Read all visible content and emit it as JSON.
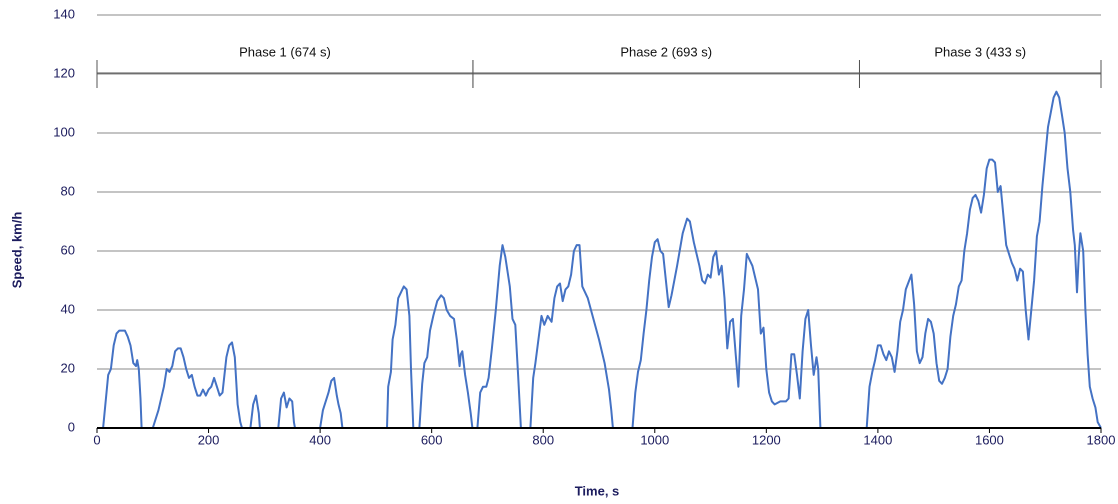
{
  "chart_data": {
    "type": "line",
    "x_label": "Time, s",
    "y_label": "Speed, km/h",
    "xlim": [
      0,
      1800
    ],
    "xticks": [
      0,
      200,
      400,
      600,
      800,
      1000,
      1200,
      1400,
      1600,
      1800
    ],
    "ylim": [
      0,
      140
    ],
    "yticks": [
      0,
      20,
      40,
      60,
      80,
      100,
      120,
      140
    ],
    "grid": true,
    "phases": [
      {
        "label": "Phase 1 (674 s)",
        "start": 0,
        "end": 674
      },
      {
        "label": "Phase 2 (693 s)",
        "start": 674,
        "end": 1367
      },
      {
        "label": "Phase 3 (433 s)",
        "start": 1367,
        "end": 1800
      }
    ],
    "x": [
      0,
      11,
      20,
      25,
      30,
      35,
      40,
      50,
      55,
      60,
      65,
      70,
      72,
      75,
      78,
      80,
      100,
      110,
      120,
      125,
      130,
      135,
      140,
      145,
      150,
      155,
      160,
      165,
      170,
      175,
      180,
      185,
      190,
      195,
      200,
      205,
      210,
      215,
      220,
      225,
      232,
      237,
      242,
      247,
      252,
      257,
      260,
      275,
      280,
      285,
      290,
      292,
      325,
      330,
      335,
      340,
      345,
      350,
      353,
      355,
      400,
      405,
      415,
      420,
      425,
      430,
      433,
      437,
      440,
      520,
      522,
      527,
      530,
      535,
      540,
      545,
      550,
      555,
      560,
      563,
      567,
      578,
      583,
      587,
      592,
      597,
      603,
      610,
      617,
      622,
      627,
      633,
      640,
      645,
      650,
      652,
      655,
      660,
      665,
      670,
      673,
      682,
      687,
      692,
      698,
      702,
      708,
      715,
      722,
      727,
      732,
      740,
      745,
      750,
      755,
      760,
      777,
      782,
      786,
      792,
      797,
      802,
      808,
      815,
      820,
      825,
      830,
      835,
      840,
      845,
      850,
      855,
      860,
      865,
      870,
      880,
      890,
      900,
      910,
      918,
      922,
      925,
      960,
      965,
      970,
      975,
      980,
      985,
      990,
      995,
      1000,
      1005,
      1010,
      1015,
      1020,
      1025,
      1030,
      1040,
      1050,
      1058,
      1063,
      1070,
      1080,
      1085,
      1090,
      1095,
      1100,
      1105,
      1110,
      1115,
      1120,
      1125,
      1130,
      1135,
      1140,
      1145,
      1150,
      1155,
      1160,
      1165,
      1170,
      1175,
      1180,
      1185,
      1190,
      1195,
      1200,
      1205,
      1210,
      1215,
      1225,
      1235,
      1240,
      1245,
      1250,
      1255,
      1260,
      1265,
      1270,
      1275,
      1280,
      1285,
      1290,
      1293,
      1297,
      1380,
      1385,
      1390,
      1395,
      1400,
      1405,
      1410,
      1415,
      1420,
      1425,
      1430,
      1435,
      1440,
      1445,
      1450,
      1460,
      1465,
      1470,
      1475,
      1480,
      1485,
      1490,
      1495,
      1500,
      1505,
      1510,
      1515,
      1520,
      1525,
      1530,
      1535,
      1540,
      1545,
      1550,
      1555,
      1560,
      1565,
      1570,
      1575,
      1580,
      1585,
      1590,
      1595,
      1600,
      1605,
      1610,
      1615,
      1620,
      1625,
      1630,
      1640,
      1645,
      1650,
      1655,
      1660,
      1665,
      1670,
      1675,
      1680,
      1685,
      1690,
      1695,
      1700,
      1705,
      1710,
      1715,
      1720,
      1725,
      1730,
      1735,
      1740,
      1745,
      1750,
      1753,
      1757,
      1760,
      1763,
      1768,
      1772,
      1776,
      1780,
      1785,
      1790,
      1794,
      1800
    ],
    "series": [
      {
        "color": "#4472c4",
        "values": [
          0,
          0,
          18,
          20,
          28,
          32,
          33,
          33,
          31,
          28,
          22,
          21,
          23,
          20,
          10,
          0,
          0,
          6,
          14,
          20,
          19,
          21,
          26,
          27,
          27,
          24,
          20,
          17,
          18,
          14,
          11,
          11,
          13,
          11,
          13,
          14,
          17,
          14,
          11,
          12,
          24,
          28,
          29,
          24,
          8,
          2,
          0,
          0,
          8,
          11,
          5,
          0,
          0,
          10,
          12,
          7,
          10,
          9,
          2,
          0,
          0,
          6,
          12,
          16,
          17,
          11,
          8,
          5,
          0,
          0,
          14,
          19,
          30,
          35,
          44,
          46,
          48,
          47,
          38,
          20,
          0,
          0,
          15,
          22,
          24,
          33,
          38,
          43,
          45,
          44,
          40,
          38,
          37,
          30,
          21,
          25,
          26,
          18,
          12,
          5,
          0,
          0,
          12,
          14,
          14,
          17,
          27,
          40,
          55,
          62,
          58,
          48,
          37,
          35,
          18,
          0,
          0,
          17,
          22,
          31,
          38,
          35,
          38,
          36,
          44,
          48,
          49,
          43,
          47,
          48,
          52,
          60,
          62,
          62,
          48,
          44,
          37,
          30,
          22,
          13,
          6,
          0,
          0,
          12,
          19,
          23,
          32,
          40,
          50,
          58,
          63,
          64,
          60,
          59,
          50,
          41,
          45,
          55,
          66,
          71,
          70,
          63,
          55,
          50,
          49,
          52,
          51,
          58,
          60,
          52,
          55,
          44,
          27,
          36,
          37,
          25,
          14,
          38,
          47,
          59,
          57,
          55,
          51,
          47,
          32,
          34,
          20,
          12,
          9,
          8,
          9,
          9,
          10,
          25,
          25,
          18,
          10,
          26,
          37,
          40,
          28,
          18,
          24,
          20,
          0,
          0,
          14,
          19,
          23,
          28,
          28,
          25,
          23,
          26,
          24,
          19,
          26,
          36,
          40,
          47,
          52,
          42,
          26,
          22,
          24,
          32,
          37,
          36,
          32,
          22,
          16,
          15,
          17,
          20,
          31,
          38,
          42,
          48,
          50,
          60,
          66,
          74,
          78,
          79,
          77,
          73,
          79,
          88,
          91,
          91,
          90,
          80,
          82,
          72,
          62,
          56,
          54,
          50,
          54,
          53,
          40,
          30,
          40,
          50,
          65,
          70,
          82,
          92,
          102,
          107,
          112,
          114,
          112,
          106,
          100,
          88,
          80,
          67,
          62,
          46,
          58,
          66,
          60,
          40,
          25,
          14,
          10,
          7,
          2,
          0
        ]
      }
    ]
  }
}
